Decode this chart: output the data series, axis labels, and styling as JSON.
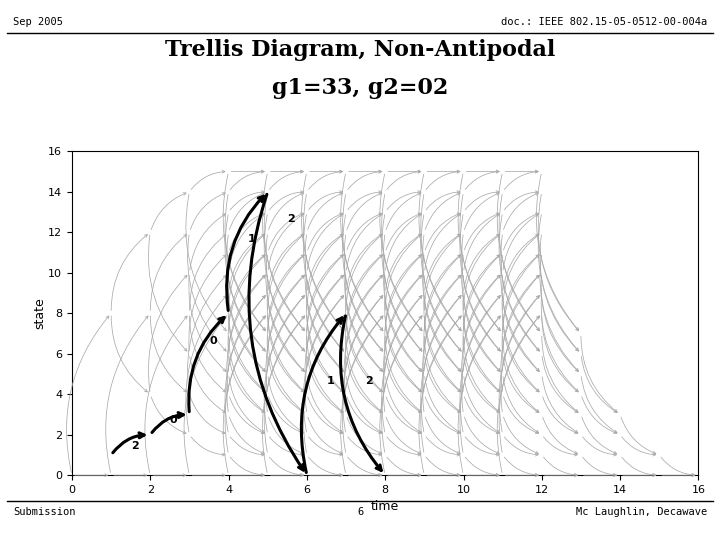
{
  "title_line1": "Trellis Diagram, Non-Antipodal",
  "title_line2": "g1=33, g2=02",
  "header_left": "Sep 2005",
  "header_right": "doc.: IEEE 802.15-05-0512-00-004a",
  "footer_left": "Submission",
  "footer_center": "6",
  "footer_right": "Mc Laughlin, Decawave",
  "xlabel": "time",
  "ylabel": "state",
  "xlim": [
    0,
    16
  ],
  "ylim": [
    0,
    16
  ],
  "xticks": [
    0,
    2,
    4,
    6,
    8,
    10,
    12,
    14,
    16
  ],
  "yticks": [
    0,
    2,
    4,
    6,
    8,
    10,
    12,
    14,
    16
  ],
  "num_states": 16,
  "num_time": 16,
  "gray_color": "#aaaaaa",
  "black_color": "#000000",
  "bg_color": "#ffffff",
  "path_t": [
    1,
    2,
    3,
    4,
    5,
    6,
    7,
    8
  ],
  "path_s": [
    1,
    2,
    3,
    8,
    14,
    0,
    8,
    0
  ],
  "path_labels": [
    "2",
    "0",
    "0",
    "1",
    "2",
    "1",
    "2"
  ],
  "full_trellis_start": 5,
  "full_trellis_end": 12
}
